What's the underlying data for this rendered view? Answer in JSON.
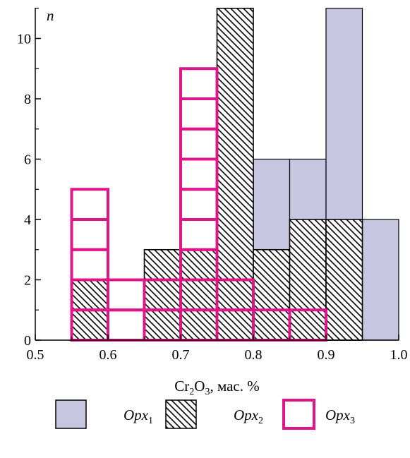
{
  "chart_data": {
    "type": "bar",
    "subtype": "overlaid histogram",
    "y_axis_label": "n",
    "x_axis_label": {
      "base": "Cr",
      "sub1": "2",
      "mid": "O",
      "sub2": "3",
      "rest": ", мас. %"
    },
    "xlim": [
      0.5,
      1.0
    ],
    "ylim": [
      0,
      11
    ],
    "x_ticks": [
      "0.5",
      "0.6",
      "0.7",
      "0.8",
      "0.9",
      "1.0"
    ],
    "y_ticks": [
      "0",
      "2",
      "4",
      "6",
      "8",
      "10"
    ],
    "bin_width": 0.05,
    "series": [
      {
        "name": "Opx1",
        "legend_main": "Opx",
        "legend_sub": "1",
        "style": "solid fill",
        "color": "#c6c6e0",
        "bins": [
          {
            "x0": 0.75,
            "x1": 0.8,
            "count": 1
          },
          {
            "x0": 0.8,
            "x1": 0.85,
            "count": 6
          },
          {
            "x0": 0.85,
            "x1": 0.9,
            "count": 6
          },
          {
            "x0": 0.9,
            "x1": 0.95,
            "count": 11
          },
          {
            "x0": 0.95,
            "x1": 1.0,
            "count": 4
          }
        ]
      },
      {
        "name": "Opx2",
        "legend_main": "Opx",
        "legend_sub": "2",
        "style": "diagonal hatch",
        "color": "#000000",
        "bins": [
          {
            "x0": 0.55,
            "x1": 0.6,
            "count": 2
          },
          {
            "x0": 0.65,
            "x1": 0.7,
            "count": 3
          },
          {
            "x0": 0.7,
            "x1": 0.75,
            "count": 3
          },
          {
            "x0": 0.75,
            "x1": 0.8,
            "count": 11
          },
          {
            "x0": 0.8,
            "x1": 0.85,
            "count": 3
          },
          {
            "x0": 0.85,
            "x1": 0.9,
            "count": 4
          },
          {
            "x0": 0.9,
            "x1": 0.95,
            "count": 4
          }
        ]
      },
      {
        "name": "Opx3",
        "legend_main": "Opx",
        "legend_sub": "3",
        "style": "outlined unit cells",
        "color": "#e0158a",
        "bins": [
          {
            "x0": 0.55,
            "x1": 0.6,
            "count": 5
          },
          {
            "x0": 0.6,
            "x1": 0.65,
            "count": 2
          },
          {
            "x0": 0.65,
            "x1": 0.7,
            "count": 2
          },
          {
            "x0": 0.7,
            "x1": 0.75,
            "count": 9
          },
          {
            "x0": 0.75,
            "x1": 0.8,
            "count": 2
          },
          {
            "x0": 0.8,
            "x1": 0.85,
            "count": 1
          },
          {
            "x0": 0.85,
            "x1": 0.9,
            "count": 1
          }
        ]
      }
    ],
    "legend_position": "bottom"
  }
}
